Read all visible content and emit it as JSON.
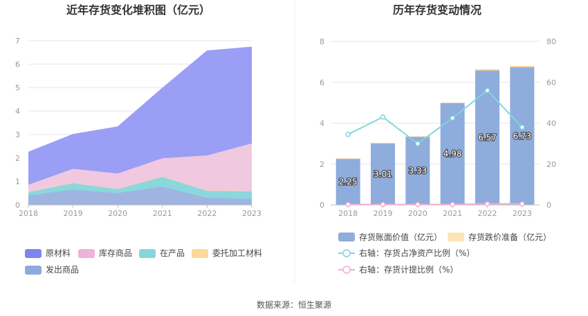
{
  "source_text": "数据来源：恒生聚源",
  "chart_data": [
    {
      "type": "area",
      "title": "近年存货变化堆积图（亿元）",
      "x": [
        "2018",
        "2019",
        "2020",
        "2021",
        "2022",
        "2023"
      ],
      "ylim": [
        0,
        7
      ],
      "yticks": [
        "0",
        "1",
        "2",
        "3",
        "4",
        "5",
        "6",
        "7"
      ],
      "grid": true,
      "legend_position": "bottom",
      "series": [
        {
          "name": "发出商品",
          "values": [
            0.4,
            0.65,
            0.5,
            0.78,
            0.3,
            0.25
          ],
          "color": "#9fb4e0"
        },
        {
          "name": "在产品",
          "values": [
            0.15,
            0.28,
            0.18,
            0.42,
            0.3,
            0.33
          ],
          "color": "#8ad8dc"
        },
        {
          "name": "委托加工材料",
          "values": [
            0.01,
            0.01,
            0.01,
            0.01,
            0.01,
            0.01
          ],
          "color": "#fcd99a"
        },
        {
          "name": "库存商品",
          "values": [
            0.3,
            0.6,
            0.65,
            0.78,
            1.5,
            2.03
          ],
          "color": "#f0c8e0"
        },
        {
          "name": "原材料",
          "values": [
            1.39,
            1.47,
            1.99,
            2.99,
            4.46,
            4.11
          ],
          "color": "#9a9ef5"
        }
      ],
      "legend": [
        {
          "name": "原材料",
          "color": "#8084f0"
        },
        {
          "name": "库存商品",
          "color": "#ecb4d8"
        },
        {
          "name": "在产品",
          "color": "#86d6dc"
        },
        {
          "name": "委托加工材料",
          "color": "#fcd89a"
        },
        {
          "name": "发出商品",
          "color": "#8fa9dc"
        }
      ]
    },
    {
      "type": "bar",
      "title": "历年存货变动情况",
      "categories": [
        "2018",
        "2019",
        "2020",
        "2021",
        "2022",
        "2023"
      ],
      "ylim": [
        0,
        8
      ],
      "yticks": [
        "0",
        "2",
        "4",
        "6",
        "8"
      ],
      "y2lim": [
        0,
        80
      ],
      "y2ticks": [
        "0",
        "20",
        "40",
        "60",
        "80"
      ],
      "grid": true,
      "legend_position": "bottom",
      "series": [
        {
          "name": "存货账面价值（亿元）",
          "values": [
            2.25,
            3.01,
            3.33,
            4.98,
            6.57,
            6.73
          ],
          "labels": [
            "2.25",
            "3.01",
            "3.33",
            "4.98",
            "6.57",
            "6.73"
          ],
          "color": "#8eacdc",
          "axis": "left"
        },
        {
          "name": "存货跌价准备（亿元）",
          "values": [
            0.02,
            0.02,
            0.02,
            0.02,
            0.06,
            0.06
          ],
          "color": "#fde3b8",
          "axis": "left"
        },
        {
          "name": "右轴：存货占净资产比例（%）",
          "type": "line",
          "values": [
            34.5,
            43,
            30,
            42.5,
            56,
            38
          ],
          "color": "#7fd6dc",
          "axis": "right"
        },
        {
          "name": "右轴：存货计提比例（%）",
          "type": "line",
          "values": [
            0.2,
            0.2,
            0.2,
            0.2,
            0.5,
            0.5
          ],
          "color": "#f0aed0",
          "axis": "right"
        }
      ]
    }
  ]
}
